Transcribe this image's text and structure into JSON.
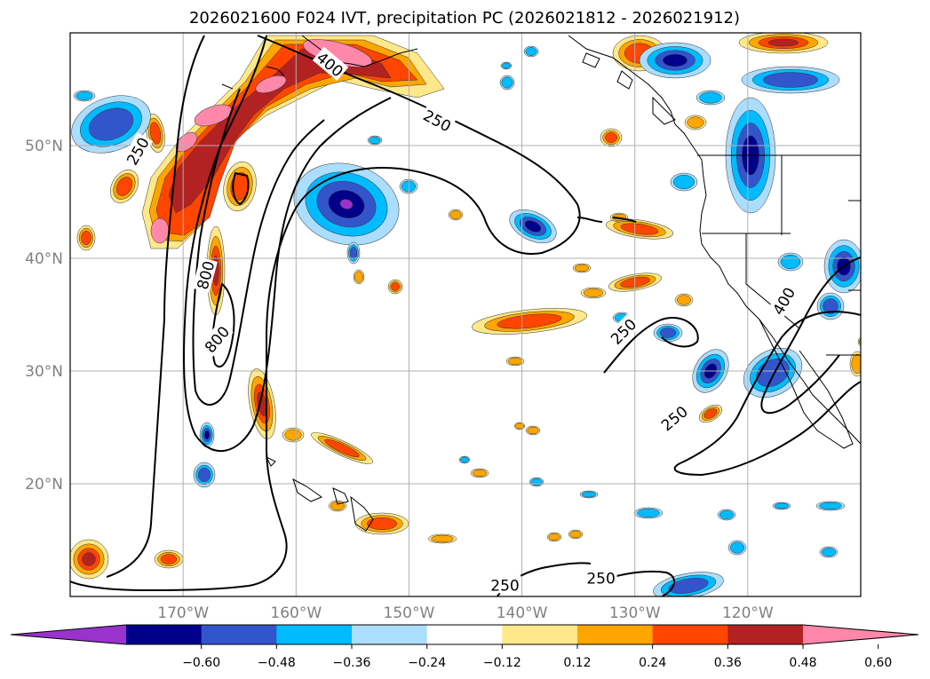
{
  "title": "2026021600 F024 IVT, precipitation PC (2026021812 - 2026021912)",
  "chart_data": {
    "type": "contourf_map",
    "title": "2026021600 F024 IVT, precipitation PC (2026021812 - 2026021912)",
    "projection": "PlateCarree",
    "extent": {
      "lon": [
        -180,
        -110
      ],
      "lat": [
        10,
        60
      ]
    },
    "lat_ticks": [
      {
        "value": 20,
        "label": "20°N"
      },
      {
        "value": 30,
        "label": "30°N"
      },
      {
        "value": 40,
        "label": "40°N"
      },
      {
        "value": 50,
        "label": "50°N"
      }
    ],
    "lon_ticks": [
      {
        "value": -170,
        "label": "170°W"
      },
      {
        "value": -160,
        "label": "160°W"
      },
      {
        "value": -150,
        "label": "150°W"
      },
      {
        "value": -140,
        "label": "140°W"
      },
      {
        "value": -130,
        "label": "130°W"
      },
      {
        "value": -120,
        "label": "120°W"
      }
    ],
    "contour_levels": [
      250,
      400,
      800
    ],
    "contour_labels": [
      {
        "text": "250",
        "lon": -147.5,
        "lat": 52.2,
        "rot": 28
      },
      {
        "text": "250",
        "lon": -174,
        "lat": 49.5,
        "rot": -60
      },
      {
        "text": "400",
        "lon": -157,
        "lat": 57.2,
        "rot": 40
      },
      {
        "text": "800",
        "lon": -168,
        "lat": 38.5,
        "rot": -75
      },
      {
        "text": "800",
        "lon": -167,
        "lat": 32.8,
        "rot": -50
      },
      {
        "text": "250",
        "lon": -131,
        "lat": 33.5,
        "rot": -45
      },
      {
        "text": "250",
        "lon": -126.5,
        "lat": 25.8,
        "rot": -40
      },
      {
        "text": "400",
        "lon": -116.8,
        "lat": 36.2,
        "rot": -60
      },
      {
        "text": "250",
        "lon": -141.5,
        "lat": 11.0,
        "rot": 0
      },
      {
        "text": "250",
        "lon": -133,
        "lat": 11.6,
        "rot": 0
      }
    ],
    "colorbar": {
      "colors": [
        "#9933cc",
        "#00008b",
        "#3355cc",
        "#00bbff",
        "#aaddff",
        "#ffffff",
        "#ffe88a",
        "#ffa500",
        "#ff4500",
        "#b22222",
        "#ff88aa"
      ],
      "boundaries": [
        -0.72,
        -0.6,
        -0.48,
        -0.36,
        -0.24,
        -0.12,
        0.12,
        0.24,
        0.36,
        0.48,
        0.6,
        0.72
      ],
      "tick_labels": [
        "−0.60",
        "−0.48",
        "−0.36",
        "−0.24",
        "−0.12",
        "0.12",
        "0.24",
        "0.36",
        "0.48",
        "0.60"
      ],
      "extend": "both"
    }
  }
}
